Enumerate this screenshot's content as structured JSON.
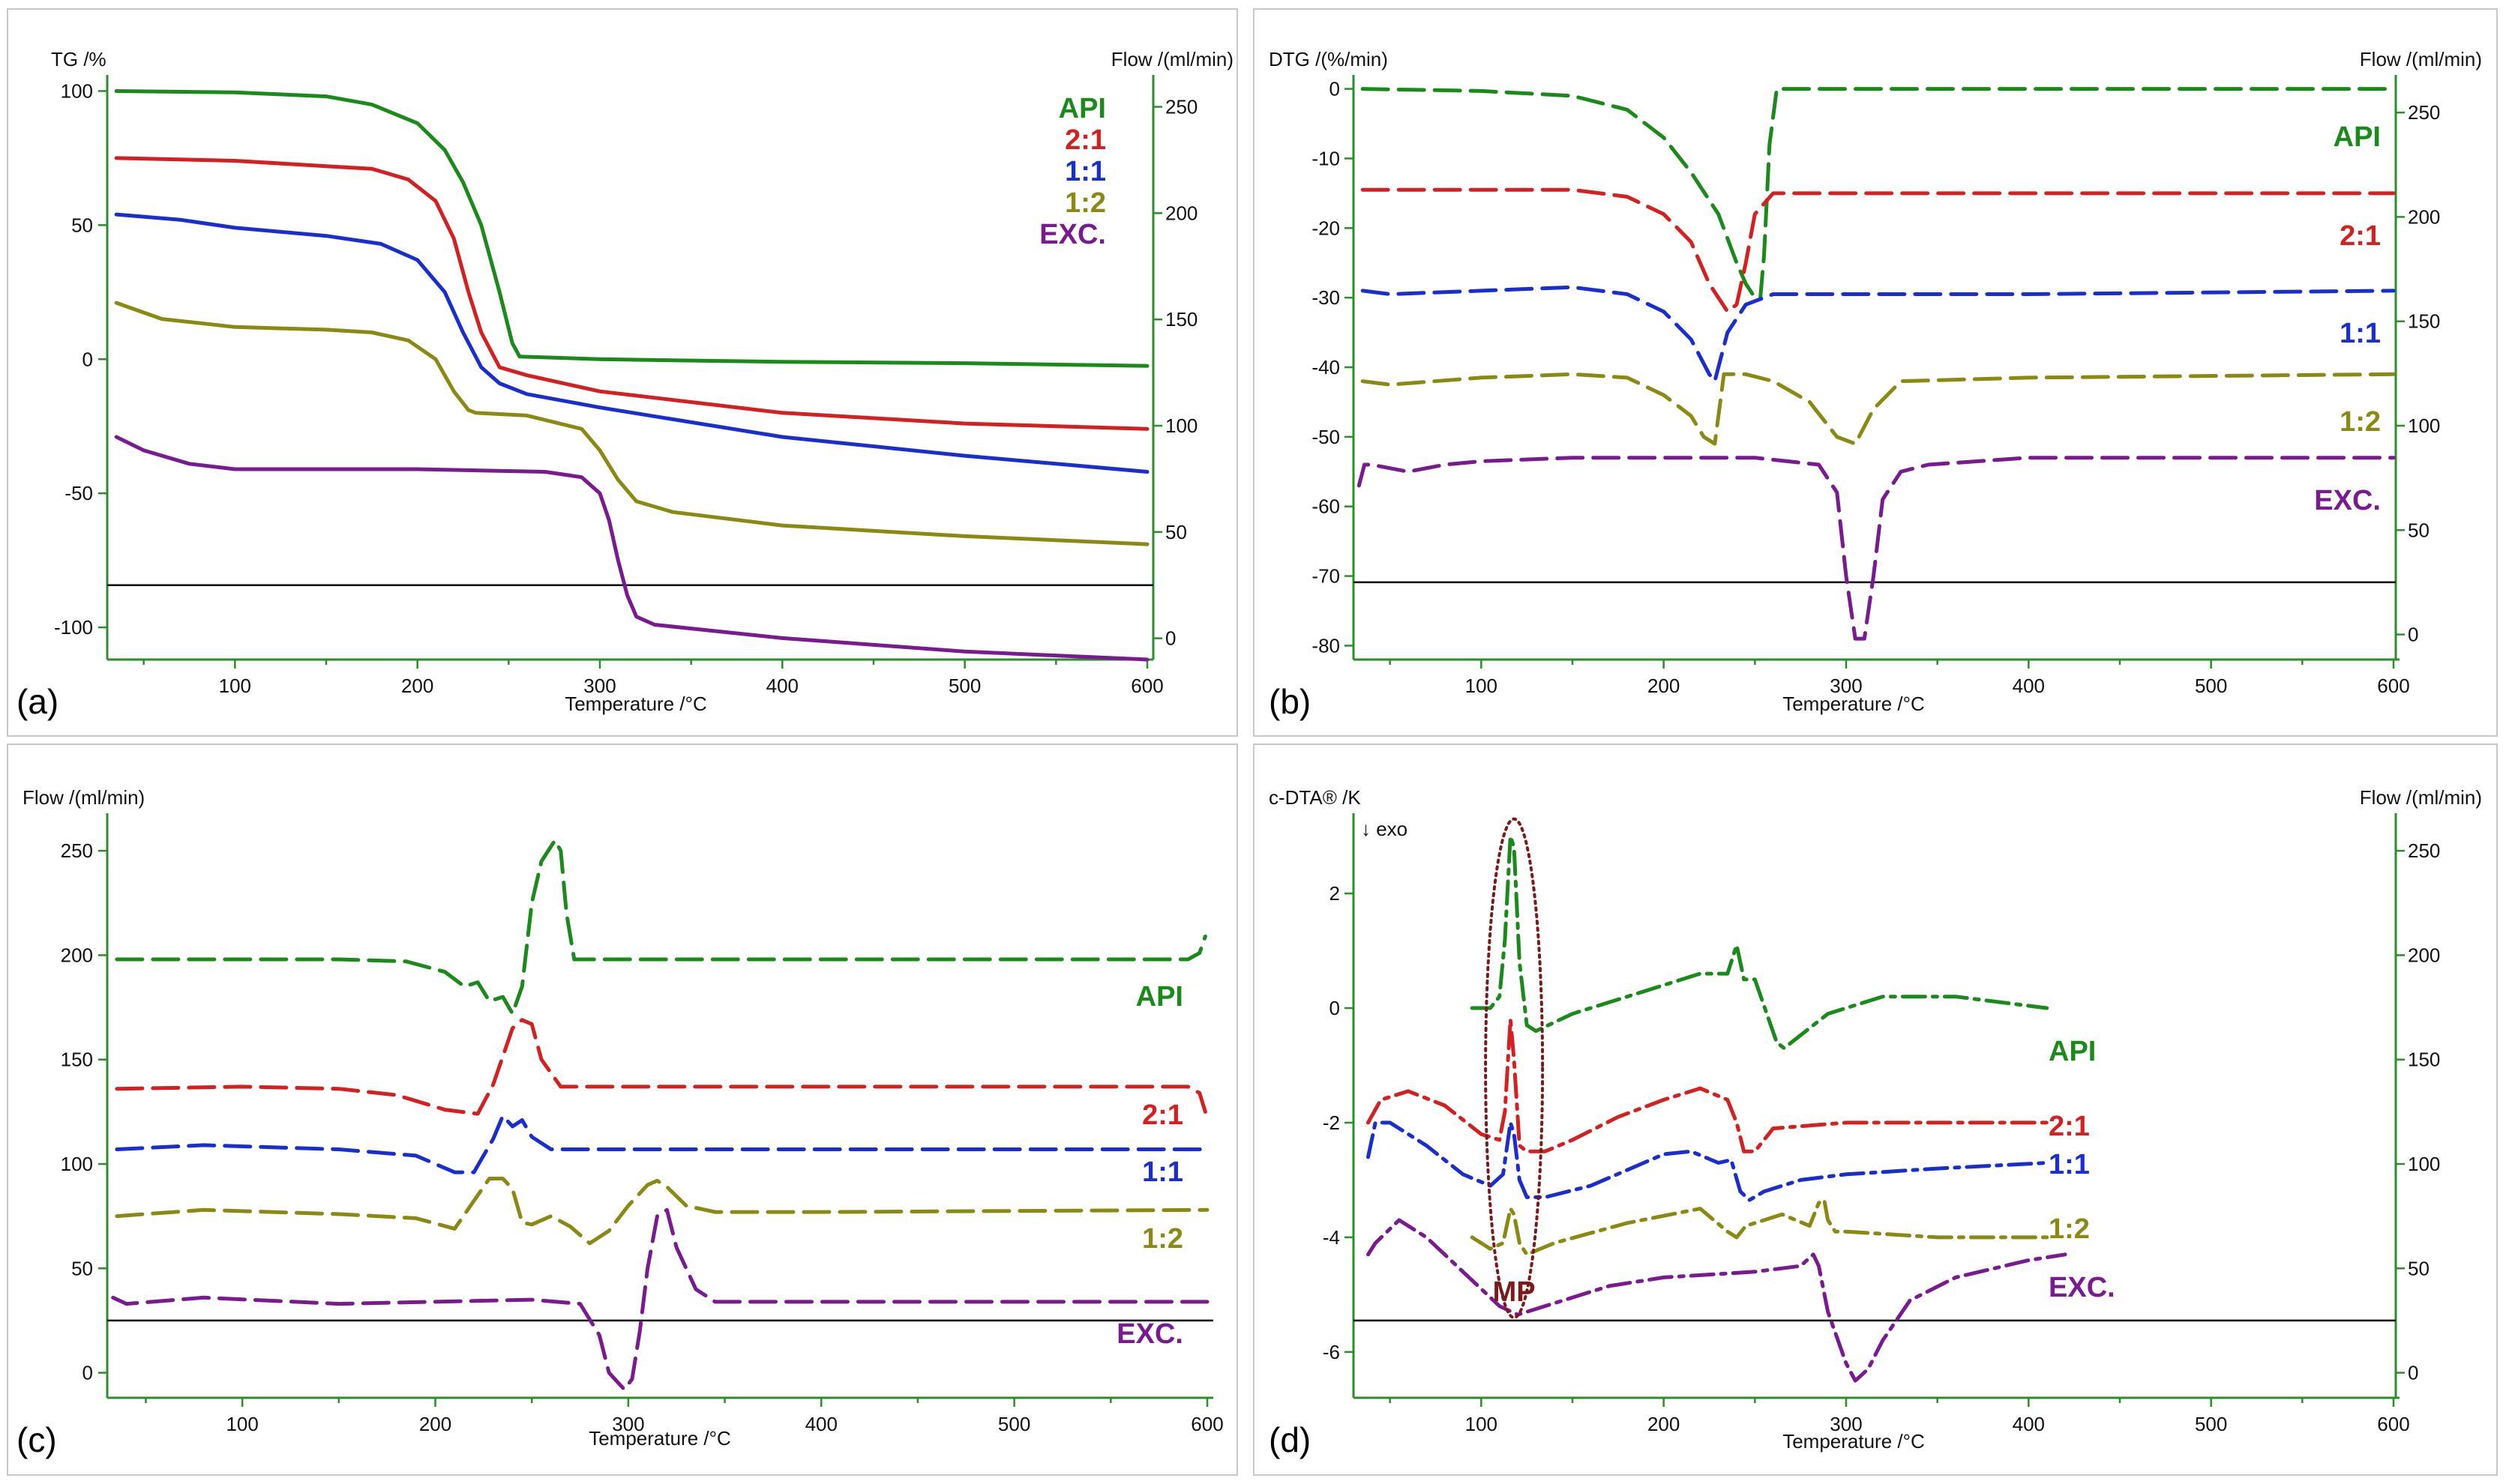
{
  "colors": {
    "API": "#1a8a1a",
    "2:1": "#d42020",
    "1:1": "#1a2ed0",
    "1:2": "#8a8a12",
    "EXC.": "#7a1a90",
    "MP": "#7a1a1a"
  },
  "chart_data": [
    {
      "id": "a",
      "panel_label": "(a)",
      "type": "line",
      "left_axis_title": "TG /%",
      "right_axis_title": "Flow /(ml/min)",
      "xlabel": "Temperature /°C",
      "xlim": [
        30,
        600
      ],
      "ylim": [
        -112,
        106
      ],
      "y2lim": [
        -10,
        265
      ],
      "xticks": [
        100,
        200,
        300,
        400,
        500,
        600
      ],
      "yticks": [
        100,
        50,
        0,
        -50,
        -100
      ],
      "y2ticks": [
        250,
        200,
        150,
        100,
        50,
        0
      ],
      "baseline_flow": 25,
      "legend_position": "top-right",
      "line_style": "solid",
      "series": [
        {
          "name": "API",
          "x": [
            35,
            100,
            150,
            175,
            200,
            215,
            225,
            235,
            245,
            252,
            256,
            300,
            400,
            500,
            600
          ],
          "y": [
            100,
            99.5,
            98,
            95,
            88,
            78,
            66,
            50,
            25,
            6,
            1,
            0,
            -1,
            -1.5,
            -2.5
          ]
        },
        {
          "name": "2:1",
          "x": [
            35,
            100,
            150,
            175,
            195,
            210,
            220,
            228,
            235,
            245,
            260,
            300,
            400,
            500,
            600
          ],
          "y": [
            75,
            74,
            72,
            71,
            67,
            59,
            45,
            25,
            10,
            -3,
            -6,
            -12,
            -20,
            -24,
            -26
          ]
        },
        {
          "name": "1:1",
          "x": [
            35,
            70,
            100,
            150,
            180,
            200,
            215,
            225,
            235,
            245,
            260,
            300,
            400,
            500,
            600
          ],
          "y": [
            54,
            52,
            49,
            46,
            43,
            37,
            25,
            10,
            -3,
            -9,
            -13,
            -18,
            -29,
            -36,
            -42
          ]
        },
        {
          "name": "1:2",
          "x": [
            35,
            60,
            100,
            150,
            175,
            195,
            210,
            220,
            228,
            232,
            260,
            290,
            300,
            310,
            320,
            340,
            400,
            500,
            600
          ],
          "y": [
            21,
            15,
            12,
            11,
            10,
            7,
            0,
            -12,
            -19,
            -20,
            -21,
            -26,
            -34,
            -45,
            -53,
            -57,
            -62,
            -66,
            -69
          ]
        },
        {
          "name": "EXC.",
          "x": [
            35,
            50,
            75,
            100,
            200,
            270,
            290,
            300,
            305,
            310,
            315,
            320,
            330,
            400,
            500,
            600
          ],
          "y": [
            -29,
            -34,
            -39,
            -41,
            -41,
            -42,
            -44,
            -50,
            -60,
            -75,
            -88,
            -96,
            -99,
            -104,
            -109,
            -112
          ]
        }
      ]
    },
    {
      "id": "b",
      "panel_label": "(b)",
      "type": "line",
      "left_axis_title": "DTG /(%/min)",
      "right_axis_title": "Flow /(ml/min)",
      "xlabel": "Temperature /°C",
      "xlim": [
        30,
        600
      ],
      "ylim": [
        -82,
        2
      ],
      "y2lim": [
        -12,
        268
      ],
      "xticks": [
        100,
        200,
        300,
        400,
        500,
        600
      ],
      "yticks": [
        0,
        -10,
        -20,
        -30,
        -40,
        -50,
        -60,
        -70,
        -80
      ],
      "y2ticks": [
        250,
        200,
        150,
        100,
        50,
        0
      ],
      "baseline_flow": 25,
      "legend_position": "right",
      "line_style": "dashed",
      "series": [
        {
          "name": "API",
          "x": [
            35,
            100,
            150,
            180,
            200,
            215,
            230,
            240,
            245,
            250,
            253,
            255,
            258,
            262,
            280,
            400,
            600
          ],
          "y": [
            0,
            -0.3,
            -1,
            -3,
            -7,
            -12,
            -18,
            -25,
            -28,
            -30,
            -30,
            -24,
            -8,
            0,
            0,
            0,
            0
          ]
        },
        {
          "name": "2:1",
          "x": [
            35,
            100,
            150,
            180,
            200,
            215,
            225,
            235,
            240,
            245,
            250,
            260,
            300,
            400,
            600
          ],
          "y": [
            -14.5,
            -14.5,
            -14.5,
            -15.5,
            -18,
            -22,
            -28,
            -32,
            -31,
            -25,
            -18,
            -15,
            -15,
            -15,
            -15
          ]
        },
        {
          "name": "1:1",
          "x": [
            35,
            50,
            100,
            150,
            180,
            200,
            215,
            225,
            228,
            235,
            245,
            260,
            300,
            400,
            600
          ],
          "y": [
            -29,
            -29.5,
            -29,
            -28.5,
            -29.5,
            -32,
            -36,
            -41,
            -42,
            -35,
            -31,
            -29.5,
            -29.5,
            -29.5,
            -29
          ]
        },
        {
          "name": "1:2",
          "x": [
            35,
            50,
            100,
            150,
            180,
            200,
            215,
            222,
            228,
            233,
            245,
            260,
            280,
            295,
            305,
            315,
            330,
            400,
            600
          ],
          "y": [
            -42,
            -42.5,
            -41.5,
            -41,
            -41.5,
            -44,
            -47,
            -50,
            -51,
            -41,
            -41,
            -42,
            -45,
            -50,
            -51,
            -46,
            -42,
            -41.5,
            -41
          ]
        },
        {
          "name": "EXC.",
          "x": [
            33,
            36,
            40,
            60,
            80,
            100,
            150,
            250,
            285,
            295,
            300,
            305,
            310,
            315,
            320,
            330,
            345,
            400,
            600
          ],
          "y": [
            -57,
            -54,
            -54,
            -55,
            -54,
            -53.5,
            -53,
            -53,
            -54,
            -58,
            -70,
            -79,
            -79,
            -70,
            -59,
            -55,
            -54,
            -53,
            -53
          ]
        }
      ]
    },
    {
      "id": "c",
      "panel_label": "(c)",
      "type": "line",
      "left_axis_title": "Flow /(ml/min)",
      "right_axis_title": "",
      "xlabel": "Temperature /°C",
      "xlim": [
        30,
        600
      ],
      "ylim": [
        -12,
        268
      ],
      "xticks": [
        100,
        200,
        300,
        400,
        500,
        600
      ],
      "yticks": [
        250,
        200,
        150,
        100,
        50,
        0
      ],
      "y2ticks": [],
      "baseline_flow": 25,
      "legend_position": "right",
      "line_style": "dashed",
      "series": [
        {
          "name": "API",
          "x": [
            35,
            150,
            185,
            205,
            215,
            222,
            228,
            235,
            240,
            245,
            250,
            255,
            262,
            265,
            268,
            272,
            280,
            400,
            590,
            596,
            599
          ],
          "y": [
            198,
            198,
            197,
            192,
            185,
            187,
            178,
            180,
            172,
            185,
            225,
            245,
            255,
            250,
            220,
            198,
            198,
            198,
            198,
            201,
            209
          ]
        },
        {
          "name": "2:1",
          "x": [
            35,
            100,
            150,
            180,
            205,
            222,
            230,
            240,
            245,
            250,
            255,
            265,
            300,
            400,
            590,
            596,
            599
          ],
          "y": [
            136,
            137,
            136,
            133,
            126,
            124,
            138,
            165,
            169,
            167,
            150,
            137,
            137,
            137,
            137,
            134,
            125
          ]
        },
        {
          "name": "1:1",
          "x": [
            35,
            80,
            150,
            190,
            210,
            220,
            230,
            235,
            240,
            245,
            250,
            260,
            300,
            400,
            600
          ],
          "y": [
            107,
            109,
            107,
            104,
            96,
            96,
            112,
            123,
            118,
            121,
            113,
            107,
            107,
            107,
            107
          ]
        },
        {
          "name": "1:2",
          "x": [
            35,
            80,
            150,
            190,
            210,
            222,
            228,
            235,
            240,
            245,
            250,
            260,
            270,
            280,
            290,
            300,
            310,
            315,
            320,
            330,
            345,
            400,
            600
          ],
          "y": [
            75,
            78,
            76,
            74,
            69,
            85,
            93,
            93,
            88,
            72,
            71,
            75,
            70,
            62,
            68,
            80,
            90,
            92,
            89,
            80,
            77,
            77,
            78
          ]
        },
        {
          "name": "EXC.",
          "x": [
            33,
            40,
            80,
            150,
            250,
            275,
            285,
            290,
            298,
            302,
            306,
            310,
            315,
            320,
            325,
            335,
            345,
            400,
            600
          ],
          "y": [
            36,
            33,
            36,
            33,
            35,
            33,
            18,
            0,
            -8,
            -3,
            20,
            50,
            75,
            78,
            60,
            40,
            34,
            34,
            34
          ]
        }
      ]
    },
    {
      "id": "d",
      "panel_label": "(d)",
      "type": "line",
      "left_axis_title": "c-DTA® /K",
      "right_axis_title": "Flow /(ml/min)",
      "exo_label": "↓ exo",
      "xlabel": "Temperature /°C",
      "xlim": [
        30,
        600
      ],
      "ylim": [
        -6.8,
        3.4
      ],
      "y2lim": [
        -12,
        268
      ],
      "xticks": [
        100,
        200,
        300,
        400,
        500,
        600
      ],
      "yticks": [
        2,
        0,
        -2,
        -4,
        -6
      ],
      "y2ticks": [
        250,
        200,
        150,
        100,
        50,
        0
      ],
      "baseline_flow": 25,
      "legend_position": "right",
      "line_style": "dashdot",
      "annotation": {
        "text": "MP",
        "circle_center_temp": 118,
        "circle_range_y": [
          -5.4,
          3.3
        ]
      },
      "series": [
        {
          "name": "API",
          "x": [
            95,
            105,
            110,
            113,
            116,
            118,
            121,
            125,
            130,
            150,
            180,
            220,
            235,
            240,
            244,
            250,
            262,
            266,
            290,
            320,
            360,
            410
          ],
          "y": [
            0,
            0,
            0.2,
            1.2,
            3,
            2.8,
            0.8,
            -0.3,
            -0.4,
            -0.1,
            0.2,
            0.6,
            0.6,
            1.1,
            0.5,
            0.5,
            -0.6,
            -0.7,
            -0.1,
            0.2,
            0.2,
            0
          ],
          "labeled": "API"
        },
        {
          "name": "2:1",
          "x": [
            38,
            45,
            60,
            80,
            100,
            110,
            113,
            116,
            118,
            121,
            125,
            135,
            150,
            175,
            200,
            220,
            235,
            240,
            244,
            250,
            260,
            300,
            350,
            410
          ],
          "y": [
            -2,
            -1.6,
            -1.45,
            -1.7,
            -2.2,
            -2.3,
            -1.8,
            -0.2,
            -0.9,
            -2.4,
            -2.5,
            -2.5,
            -2.3,
            -1.9,
            -1.6,
            -1.4,
            -1.6,
            -2,
            -2.5,
            -2.5,
            -2.1,
            -2,
            -2,
            -2
          ]
        },
        {
          "name": "1:1",
          "x": [
            38,
            42,
            50,
            70,
            90,
            105,
            112,
            116,
            118,
            121,
            125,
            135,
            160,
            200,
            215,
            230,
            237,
            242,
            247,
            255,
            275,
            300,
            350,
            410
          ],
          "y": [
            -2.6,
            -2,
            -2,
            -2.4,
            -2.9,
            -3.1,
            -2.9,
            -2,
            -2.2,
            -3,
            -3.3,
            -3.3,
            -3.1,
            -2.55,
            -2.5,
            -2.7,
            -2.65,
            -3.2,
            -3.35,
            -3.2,
            -3,
            -2.9,
            -2.8,
            -2.7
          ]
        },
        {
          "name": "1:2",
          "x": [
            95,
            105,
            112,
            116,
            118,
            121,
            125,
            140,
            180,
            220,
            235,
            240,
            245,
            265,
            280,
            285,
            288,
            290,
            294,
            300,
            350,
            410
          ],
          "y": [
            -4,
            -4.2,
            -4.1,
            -3.5,
            -3.6,
            -4.1,
            -4.3,
            -4.1,
            -3.75,
            -3.5,
            -3.9,
            -4,
            -3.8,
            -3.6,
            -3.8,
            -3.4,
            -3.35,
            -3.7,
            -3.9,
            -3.9,
            -4,
            -4
          ]
        },
        {
          "name": "EXC.",
          "x": [
            38,
            42,
            55,
            70,
            90,
            110,
            120,
            140,
            170,
            200,
            250,
            275,
            282,
            285,
            290,
            300,
            305,
            312,
            320,
            335,
            360,
            400,
            420
          ],
          "y": [
            -4.3,
            -4.1,
            -3.7,
            -4,
            -4.6,
            -5.2,
            -5.35,
            -5.15,
            -4.85,
            -4.7,
            -4.6,
            -4.5,
            -4.3,
            -4.5,
            -5.3,
            -6.2,
            -6.5,
            -6.3,
            -5.8,
            -5.1,
            -4.7,
            -4.4,
            -4.3
          ]
        }
      ]
    }
  ]
}
